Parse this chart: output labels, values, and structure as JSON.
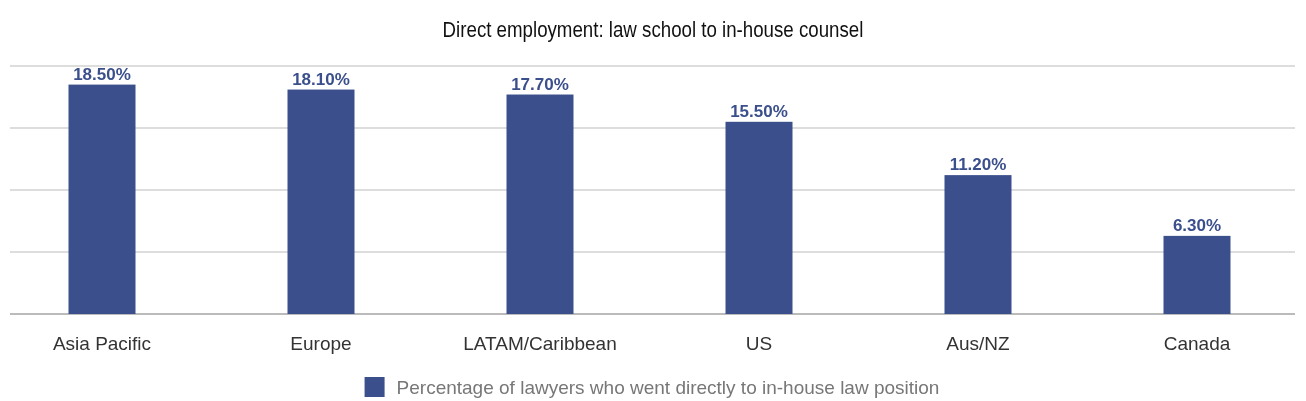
{
  "chart_data": {
    "type": "bar",
    "title": "Direct employment: law school to in-house counsel",
    "categories": [
      "Asia Pacific",
      "Europe",
      "LATAM/Caribbean",
      "US",
      "Aus/NZ",
      "Canada"
    ],
    "series": [
      {
        "name": "Percentage of lawyers who went directly to in-house law position",
        "color": "#3a4f8c",
        "values": [
          18.5,
          18.1,
          17.7,
          15.5,
          11.2,
          6.3
        ],
        "value_labels": [
          "18.50%",
          "18.10%",
          "17.70%",
          "15.50%",
          "11.20%",
          "6.30%"
        ]
      }
    ],
    "ylim": [
      0,
      20
    ],
    "yticks": [
      {
        "value": 0,
        "label": null
      },
      {
        "value": 5,
        "label": null
      },
      {
        "value": 10,
        "label": null
      },
      {
        "value": 15,
        "label": null
      },
      {
        "value": 20,
        "label": null
      }
    ],
    "tick_labels": "x",
    "grid": "y",
    "legend": "bottom"
  }
}
